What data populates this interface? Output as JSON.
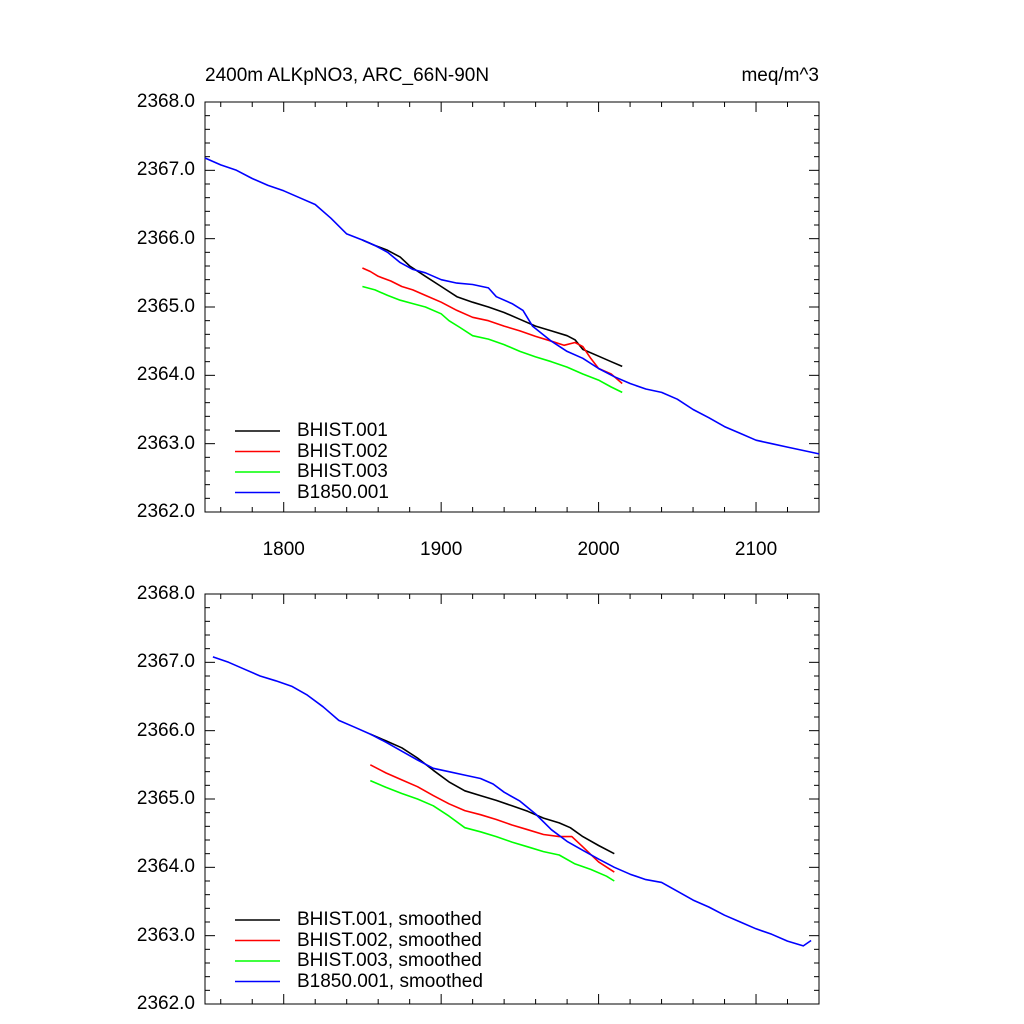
{
  "chart_data": [
    {
      "type": "line",
      "title": "2400m ALKpNO3, ARC_66N-90N",
      "units": "meq/m^3",
      "xlim": [
        1750,
        2140
      ],
      "ylim": [
        2362.0,
        2368.0
      ],
      "xticks": [
        "1800",
        "1900",
        "2000",
        "2100"
      ],
      "yticks": [
        "2362.0",
        "2363.0",
        "2364.0",
        "2365.0",
        "2366.0",
        "2367.0",
        "2368.0"
      ],
      "legend": "bottom-left",
      "series": [
        {
          "name": "BHIST.001",
          "color": "#000000",
          "points": [
            [
              1850,
              2365.98
            ],
            [
              1858,
              2365.9
            ],
            [
              1866,
              2365.83
            ],
            [
              1874,
              2365.73
            ],
            [
              1880,
              2365.6
            ],
            [
              1890,
              2365.45
            ],
            [
              1900,
              2365.3
            ],
            [
              1910,
              2365.15
            ],
            [
              1920,
              2365.07
            ],
            [
              1930,
              2365.0
            ],
            [
              1940,
              2364.92
            ],
            [
              1950,
              2364.82
            ],
            [
              1960,
              2364.72
            ],
            [
              1970,
              2364.65
            ],
            [
              1980,
              2364.58
            ],
            [
              1985,
              2364.52
            ],
            [
              1990,
              2364.38
            ],
            [
              2000,
              2364.28
            ],
            [
              2008,
              2364.2
            ],
            [
              2015,
              2364.13
            ]
          ]
        },
        {
          "name": "BHIST.002",
          "color": "#ff0000",
          "points": [
            [
              1850,
              2365.57
            ],
            [
              1855,
              2365.52
            ],
            [
              1860,
              2365.45
            ],
            [
              1868,
              2365.38
            ],
            [
              1875,
              2365.3
            ],
            [
              1882,
              2365.25
            ],
            [
              1890,
              2365.17
            ],
            [
              1900,
              2365.07
            ],
            [
              1910,
              2364.95
            ],
            [
              1920,
              2364.85
            ],
            [
              1930,
              2364.8
            ],
            [
              1940,
              2364.72
            ],
            [
              1950,
              2364.65
            ],
            [
              1960,
              2364.57
            ],
            [
              1970,
              2364.5
            ],
            [
              1978,
              2364.44
            ],
            [
              1985,
              2364.48
            ],
            [
              1990,
              2364.42
            ],
            [
              1995,
              2364.25
            ],
            [
              2000,
              2364.1
            ],
            [
              2008,
              2364.02
            ],
            [
              2015,
              2363.88
            ]
          ]
        },
        {
          "name": "BHIST.003",
          "color": "#00ff00",
          "points": [
            [
              1850,
              2365.3
            ],
            [
              1858,
              2365.25
            ],
            [
              1866,
              2365.17
            ],
            [
              1874,
              2365.1
            ],
            [
              1882,
              2365.05
            ],
            [
              1890,
              2365.0
            ],
            [
              1900,
              2364.9
            ],
            [
              1905,
              2364.8
            ],
            [
              1912,
              2364.7
            ],
            [
              1920,
              2364.58
            ],
            [
              1930,
              2364.53
            ],
            [
              1940,
              2364.45
            ],
            [
              1950,
              2364.35
            ],
            [
              1960,
              2364.27
            ],
            [
              1970,
              2364.2
            ],
            [
              1980,
              2364.12
            ],
            [
              1990,
              2364.02
            ],
            [
              2000,
              2363.93
            ],
            [
              2008,
              2363.83
            ],
            [
              2015,
              2363.75
            ]
          ]
        },
        {
          "name": "B1850.001",
          "color": "#0000ff",
          "points": [
            [
              1750,
              2367.18
            ],
            [
              1760,
              2367.08
            ],
            [
              1770,
              2367.0
            ],
            [
              1780,
              2366.88
            ],
            [
              1790,
              2366.78
            ],
            [
              1800,
              2366.7
            ],
            [
              1810,
              2366.6
            ],
            [
              1820,
              2366.5
            ],
            [
              1830,
              2366.3
            ],
            [
              1840,
              2366.07
            ],
            [
              1850,
              2365.98
            ],
            [
              1858,
              2365.9
            ],
            [
              1866,
              2365.8
            ],
            [
              1874,
              2365.65
            ],
            [
              1882,
              2365.55
            ],
            [
              1890,
              2365.5
            ],
            [
              1900,
              2365.4
            ],
            [
              1910,
              2365.35
            ],
            [
              1920,
              2365.33
            ],
            [
              1930,
              2365.28
            ],
            [
              1935,
              2365.15
            ],
            [
              1945,
              2365.05
            ],
            [
              1952,
              2364.95
            ],
            [
              1958,
              2364.72
            ],
            [
              1970,
              2364.5
            ],
            [
              1980,
              2364.35
            ],
            [
              1990,
              2364.25
            ],
            [
              2000,
              2364.1
            ],
            [
              2010,
              2363.98
            ],
            [
              2020,
              2363.88
            ],
            [
              2030,
              2363.8
            ],
            [
              2040,
              2363.75
            ],
            [
              2050,
              2363.65
            ],
            [
              2060,
              2363.5
            ],
            [
              2070,
              2363.38
            ],
            [
              2080,
              2363.25
            ],
            [
              2090,
              2363.15
            ],
            [
              2100,
              2363.05
            ],
            [
              2110,
              2363.0
            ],
            [
              2120,
              2362.95
            ],
            [
              2130,
              2362.9
            ],
            [
              2140,
              2362.85
            ]
          ]
        }
      ]
    },
    {
      "type": "line",
      "xlim": [
        1750,
        2140
      ],
      "ylim": [
        2362.0,
        2368.0
      ],
      "yticks": [
        "2362.0",
        "2363.0",
        "2364.0",
        "2365.0",
        "2366.0",
        "2367.0",
        "2368.0"
      ],
      "legend": "bottom-left",
      "series": [
        {
          "name": "BHIST.001, smoothed",
          "color": "#000000",
          "points": [
            [
              1855,
              2365.95
            ],
            [
              1865,
              2365.85
            ],
            [
              1875,
              2365.75
            ],
            [
              1885,
              2365.6
            ],
            [
              1895,
              2365.42
            ],
            [
              1905,
              2365.25
            ],
            [
              1915,
              2365.12
            ],
            [
              1925,
              2365.05
            ],
            [
              1935,
              2364.98
            ],
            [
              1945,
              2364.9
            ],
            [
              1955,
              2364.82
            ],
            [
              1965,
              2364.72
            ],
            [
              1975,
              2364.65
            ],
            [
              1982,
              2364.58
            ],
            [
              1990,
              2364.45
            ],
            [
              2000,
              2364.32
            ],
            [
              2010,
              2364.2
            ]
          ]
        },
        {
          "name": "BHIST.002, smoothed",
          "color": "#ff0000",
          "points": [
            [
              1855,
              2365.5
            ],
            [
              1865,
              2365.38
            ],
            [
              1875,
              2365.28
            ],
            [
              1885,
              2365.18
            ],
            [
              1895,
              2365.05
            ],
            [
              1905,
              2364.93
            ],
            [
              1915,
              2364.83
            ],
            [
              1925,
              2364.77
            ],
            [
              1935,
              2364.7
            ],
            [
              1945,
              2364.62
            ],
            [
              1955,
              2364.55
            ],
            [
              1965,
              2364.48
            ],
            [
              1975,
              2364.45
            ],
            [
              1983,
              2364.45
            ],
            [
              1990,
              2364.3
            ],
            [
              2000,
              2364.08
            ],
            [
              2010,
              2363.93
            ]
          ]
        },
        {
          "name": "BHIST.003, smoothed",
          "color": "#00ff00",
          "points": [
            [
              1855,
              2365.27
            ],
            [
              1865,
              2365.17
            ],
            [
              1875,
              2365.08
            ],
            [
              1885,
              2365.0
            ],
            [
              1895,
              2364.9
            ],
            [
              1905,
              2364.75
            ],
            [
              1915,
              2364.58
            ],
            [
              1925,
              2364.52
            ],
            [
              1935,
              2364.45
            ],
            [
              1945,
              2364.37
            ],
            [
              1955,
              2364.3
            ],
            [
              1965,
              2364.23
            ],
            [
              1975,
              2364.18
            ],
            [
              1985,
              2364.05
            ],
            [
              1995,
              2363.97
            ],
            [
              2005,
              2363.87
            ],
            [
              2010,
              2363.8
            ]
          ]
        },
        {
          "name": "B1850.001, smoothed",
          "color": "#0000ff",
          "points": [
            [
              1755,
              2367.08
            ],
            [
              1765,
              2367.0
            ],
            [
              1775,
              2366.9
            ],
            [
              1785,
              2366.8
            ],
            [
              1795,
              2366.73
            ],
            [
              1805,
              2366.65
            ],
            [
              1815,
              2366.52
            ],
            [
              1825,
              2366.35
            ],
            [
              1835,
              2366.15
            ],
            [
              1845,
              2366.05
            ],
            [
              1855,
              2365.95
            ],
            [
              1865,
              2365.83
            ],
            [
              1875,
              2365.7
            ],
            [
              1885,
              2365.57
            ],
            [
              1895,
              2365.45
            ],
            [
              1905,
              2365.4
            ],
            [
              1915,
              2365.35
            ],
            [
              1925,
              2365.3
            ],
            [
              1933,
              2365.22
            ],
            [
              1940,
              2365.1
            ],
            [
              1950,
              2364.97
            ],
            [
              1960,
              2364.78
            ],
            [
              1970,
              2364.55
            ],
            [
              1980,
              2364.38
            ],
            [
              1990,
              2364.25
            ],
            [
              2000,
              2364.12
            ],
            [
              2010,
              2364.0
            ],
            [
              2020,
              2363.9
            ],
            [
              2030,
              2363.82
            ],
            [
              2040,
              2363.78
            ],
            [
              2050,
              2363.65
            ],
            [
              2060,
              2363.52
            ],
            [
              2070,
              2363.42
            ],
            [
              2080,
              2363.3
            ],
            [
              2090,
              2363.2
            ],
            [
              2100,
              2363.1
            ],
            [
              2110,
              2363.02
            ],
            [
              2120,
              2362.92
            ],
            [
              2130,
              2362.85
            ],
            [
              2135,
              2362.93
            ]
          ]
        }
      ]
    }
  ]
}
